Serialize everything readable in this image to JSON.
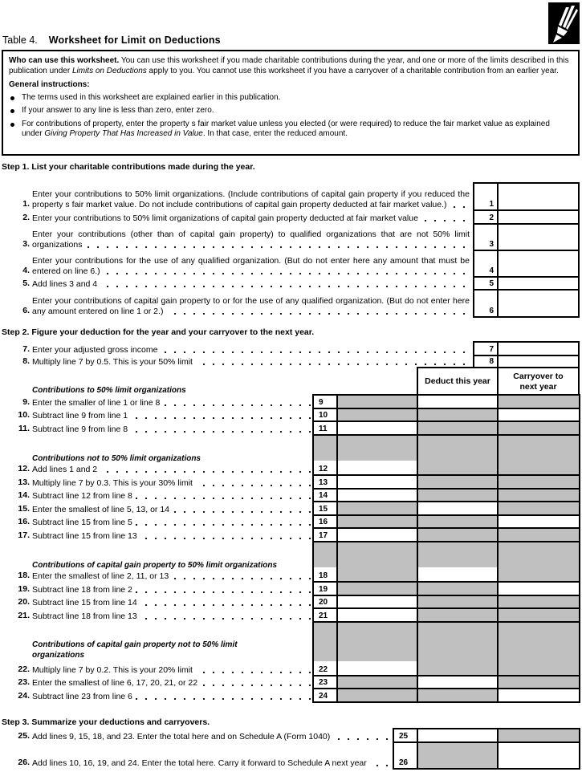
{
  "title": {
    "label": "Table 4.",
    "text": "Worksheet for Limit on Deductions"
  },
  "icon": "pencil-icon",
  "intro": {
    "who_bold": "Who can use this worksheet.",
    "who_text_1": " You can use this worksheet if you made charitable contributions during the year, and one or more of the limits described in this publication under ",
    "who_italic": "Limits on Deductions",
    "who_text_2": " apply to you. You cannot use this worksheet if you have a carryover of a charitable contribution from an earlier year.",
    "general_heading": "General instructions:",
    "bullet_1": "The terms used in this worksheet are explained earlier in this publication.",
    "bullet_2": "If your answer to any line is less than zero, enter zero.",
    "bullet_3a": "For contributions of property, enter the property s fair market value unless you elected (or were required) to reduce the fair market value as explained under ",
    "bullet_3_italic": "Giving Property That Has Increased in Value",
    "bullet_3b": ". In that case, enter the reduced amount."
  },
  "steps": {
    "step1": "Step 1. List your charitable contributions made during the year.",
    "step2": "Step 2. Figure your deduction for the year and your carryover to the next year.",
    "step3": "Step 3. Summarize your deductions and carryovers."
  },
  "columns": {
    "deduct": "Deduct this year",
    "carryover": "Carryover to next year"
  },
  "subheadings": [
    "Contributions to 50% limit organizations",
    "Contributions not to 50% limit organizations",
    "Contributions of capital gain property to 50% limit organizations",
    "Contributions of capital gain property not to 50% limit organizations"
  ],
  "colors": {
    "shaded": "#c0c0c0",
    "border": "#000000"
  },
  "lines": [
    {
      "num": "1.",
      "box": "1",
      "text": "Enter your contributions to 50% limit organizations. (Include contributions of capital gain property if you reduced the property s fair market value. Do not include contributions of capital gain property deducted at fair market value.)"
    },
    {
      "num": "2.",
      "box": "2",
      "text": "Enter your contributions to 50% limit organizations of capital gain property deducted at fair market value"
    },
    {
      "num": "3.",
      "box": "3",
      "text": "Enter your contributions (other than of capital gain property) to qualified organizations that are not 50% limit organizations"
    },
    {
      "num": "4.",
      "box": "4",
      "text": "Enter your contributions for the use of any qualified organization. (But do not enter here any amount that must be entered on line 6.)"
    },
    {
      "num": "5.",
      "box": "5",
      "text": "Add lines 3 and 4"
    },
    {
      "num": "6.",
      "box": "6",
      "text": "Enter your contributions of capital gain property to or for the use of any qualified organization. (But do not enter here any amount entered on line 1 or 2.)"
    },
    {
      "num": "7.",
      "box": "7",
      "text": "Enter your adjusted gross income"
    },
    {
      "num": "8.",
      "box": "8",
      "text": "Multiply line 7 by 0.5. This is your 50% limit"
    },
    {
      "num": "9.",
      "box": "9",
      "text": "Enter the smaller of line 1 or line 8",
      "cells": [
        "shaded",
        "blank",
        "shaded"
      ]
    },
    {
      "num": "10.",
      "box": "10",
      "text": "Subtract line 9 from line 1",
      "cells": [
        "shaded",
        "shaded",
        "blank"
      ]
    },
    {
      "num": "11.",
      "box": "11",
      "text": "Subtract line 9 from line 8",
      "cells": [
        "blank",
        "shaded",
        "shaded"
      ]
    },
    {
      "num": "12.",
      "box": "12",
      "text": "Add lines 1 and 2",
      "cells": [
        "blank",
        "shaded",
        "shaded"
      ]
    },
    {
      "num": "13.",
      "box": "13",
      "text": "Multiply line 7 by 0.3. This is your 30% limit",
      "cells": [
        "blank",
        "shaded",
        "shaded"
      ]
    },
    {
      "num": "14.",
      "box": "14",
      "text": "Subtract line 12 from line 8",
      "cells": [
        "blank",
        "shaded",
        "shaded"
      ]
    },
    {
      "num": "15.",
      "box": "15",
      "text": "Enter the smallest of line 5, 13, or 14",
      "cells": [
        "shaded",
        "blank",
        "shaded"
      ]
    },
    {
      "num": "16.",
      "box": "16",
      "text": "Subtract line 15 from line 5",
      "cells": [
        "shaded",
        "shaded",
        "blank"
      ]
    },
    {
      "num": "17.",
      "box": "17",
      "text": "Subtract line 15 from line 13",
      "cells": [
        "blank",
        "shaded",
        "shaded"
      ]
    },
    {
      "num": "18.",
      "box": "18",
      "text": "Enter the smallest of line 2, 11, or 13",
      "cells": [
        "shaded",
        "blank",
        "shaded"
      ]
    },
    {
      "num": "19.",
      "box": "19",
      "text": "Subtract line 18 from line 2",
      "cells": [
        "shaded",
        "shaded",
        "blank"
      ]
    },
    {
      "num": "20.",
      "box": "20",
      "text": "Subtract line 15 from line 14",
      "cells": [
        "blank",
        "shaded",
        "shaded"
      ]
    },
    {
      "num": "21.",
      "box": "21",
      "text": "Subtract line 18 from line 13",
      "cells": [
        "blank",
        "shaded",
        "shaded"
      ]
    },
    {
      "num": "22.",
      "box": "22",
      "text": "Multiply line 7 by 0.2. This is your 20% limit",
      "cells": [
        "blank",
        "shaded",
        "shaded"
      ]
    },
    {
      "num": "23.",
      "box": "23",
      "text": "Enter the smallest of line 6, 17, 20, 21, or 22",
      "cells": [
        "shaded",
        "blank",
        "shaded"
      ]
    },
    {
      "num": "24.",
      "box": "24",
      "text": "Subtract line 23 from line 6",
      "cells": [
        "shaded",
        "shaded",
        "blank"
      ]
    },
    {
      "num": "25.",
      "box": "25",
      "text": "Add lines 9, 15, 18, and 23. Enter the total here and on Schedule A (Form 1040)",
      "cells": [
        "blank",
        "shaded"
      ]
    },
    {
      "num": "26.",
      "box": "26",
      "text": "Add lines 10, 16, 19, and 24. Enter the total here. Carry it forward to Schedule A next year",
      "cells": [
        "shaded",
        "blank"
      ]
    }
  ]
}
